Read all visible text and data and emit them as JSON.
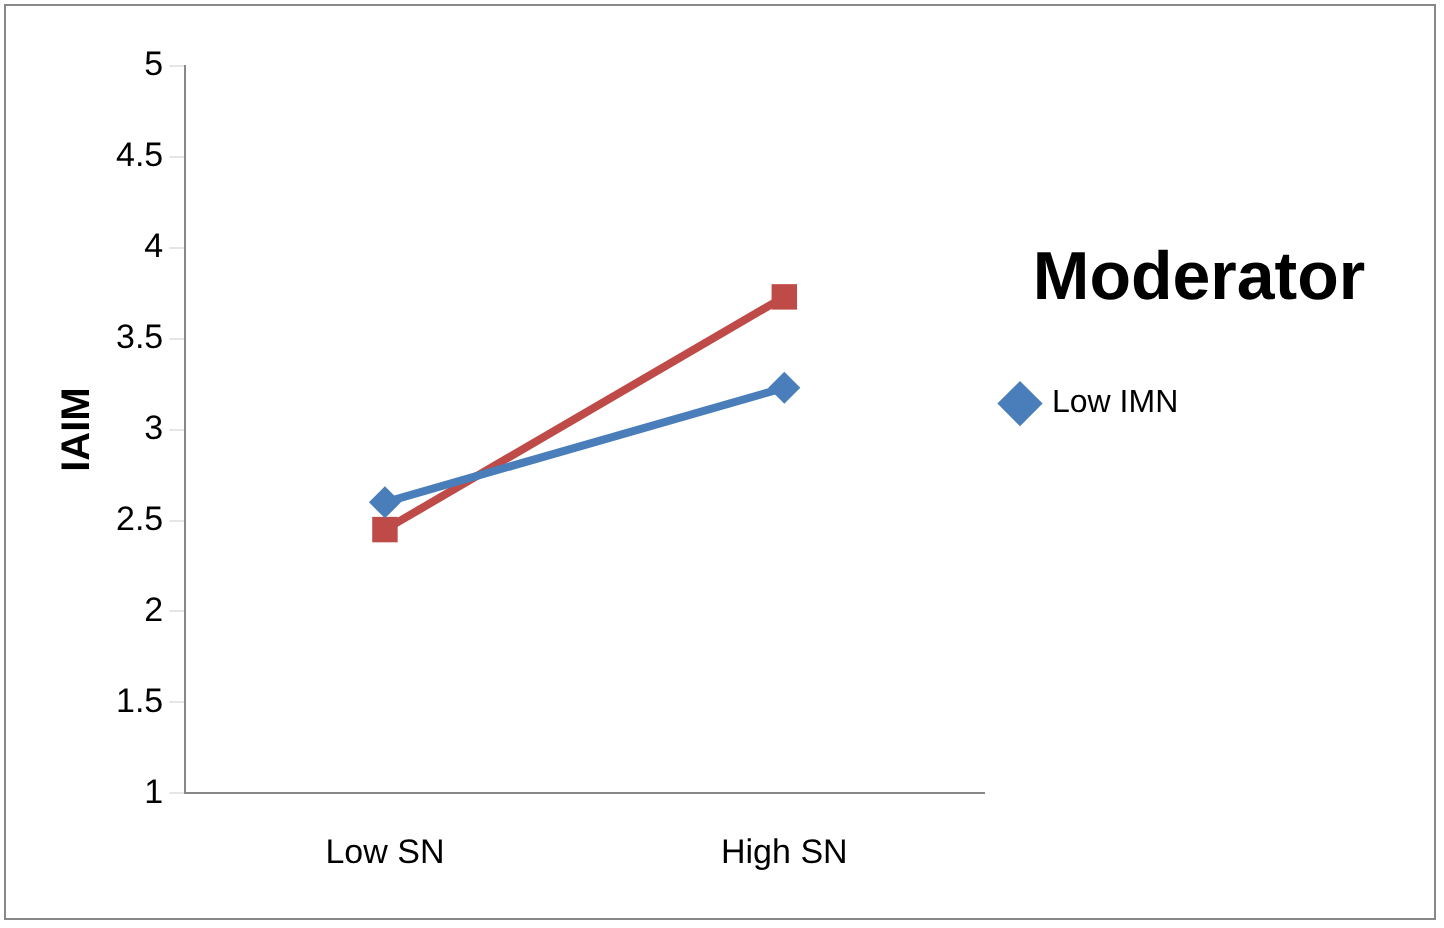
{
  "chart_data": {
    "type": "line",
    "ylabel": "IAIM",
    "legend_title": "Moderator",
    "legend": "right",
    "grid": false,
    "categories": [
      "Low SN",
      "High SN"
    ],
    "ylim": [
      1,
      5
    ],
    "yticks": [
      1,
      1.5,
      2,
      2.5,
      3,
      3.5,
      4,
      4.5,
      5
    ],
    "series": [
      {
        "name": "Low IMN",
        "color": "#4a7ebb",
        "marker": "diamond",
        "values": [
          2.6,
          3.23
        ]
      },
      {
        "color": "#be4b48",
        "marker": "square",
        "values": [
          2.45,
          3.73
        ]
      }
    ]
  }
}
